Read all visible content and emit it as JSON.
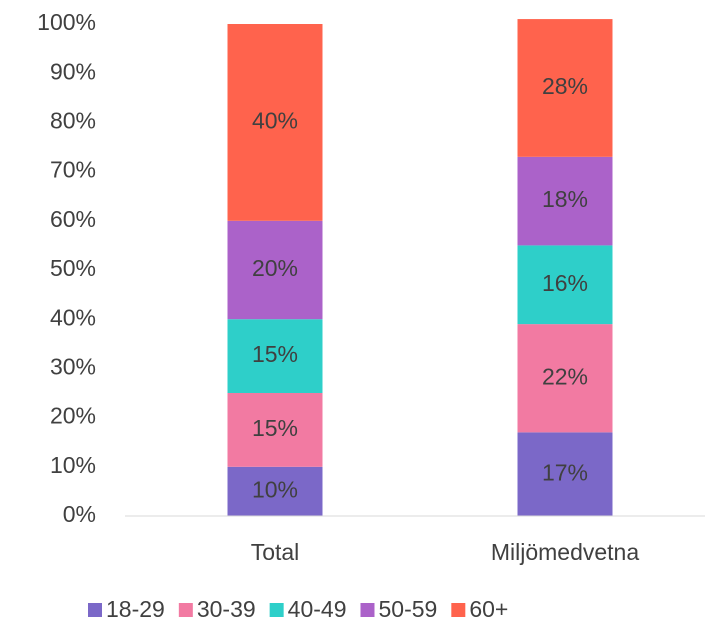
{
  "chart_data": {
    "type": "stacked_bar",
    "categories": [
      "Total",
      "Miljömedvetna"
    ],
    "series": [
      {
        "name": "18-29",
        "color": "#7b68c8",
        "values": [
          10,
          17
        ],
        "value_labels": [
          "10%",
          "17%"
        ]
      },
      {
        "name": "30-39",
        "color": "#f27aa2",
        "values": [
          15,
          22
        ],
        "value_labels": [
          "15%",
          "22%"
        ]
      },
      {
        "name": "40-49",
        "color": "#2ecfc9",
        "values": [
          15,
          16
        ],
        "value_labels": [
          "15%",
          "16%"
        ]
      },
      {
        "name": "50-59",
        "color": "#ab62c9",
        "values": [
          20,
          18
        ],
        "value_labels": [
          "20%",
          "18%"
        ]
      },
      {
        "name": "60+",
        "color": "#ff634d",
        "values": [
          40,
          28
        ],
        "value_labels": [
          "40%",
          "28%"
        ]
      }
    ],
    "ylim": [
      0,
      100
    ],
    "yticks": [
      {
        "value": 0,
        "label": "0%"
      },
      {
        "value": 10,
        "label": "10%"
      },
      {
        "value": 20,
        "label": "20%"
      },
      {
        "value": 30,
        "label": "30%"
      },
      {
        "value": 40,
        "label": "40%"
      },
      {
        "value": 50,
        "label": "50%"
      },
      {
        "value": 60,
        "label": "60%"
      },
      {
        "value": 70,
        "label": "70%"
      },
      {
        "value": 80,
        "label": "80%"
      },
      {
        "value": 90,
        "label": "90%"
      },
      {
        "value": 100,
        "label": "100%"
      }
    ],
    "legend": "bottom"
  }
}
